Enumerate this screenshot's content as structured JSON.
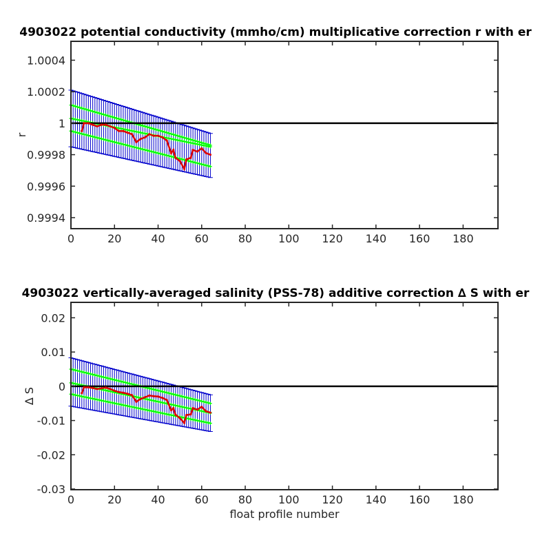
{
  "chart_data": [
    {
      "type": "line",
      "title": "4903022 potential conductivity (mmho/cm) multiplicative correction r with er",
      "xlabel": "",
      "ylabel": "r",
      "xlim": [
        0,
        196
      ],
      "ylim": [
        0.99933,
        1.00052
      ],
      "x_ticks": [
        0,
        20,
        40,
        60,
        80,
        100,
        120,
        140,
        160,
        180
      ],
      "x_tick_labels": [
        "0",
        "20",
        "40",
        "60",
        "80",
        "100",
        "120",
        "140",
        "160",
        "180"
      ],
      "y_ticks": [
        0.9994,
        0.9996,
        0.9998,
        1,
        1.0002,
        1.0004
      ],
      "y_tick_labels": [
        "0.9994",
        "0.9996",
        "0.9998",
        "1",
        "1.0002",
        "1.0004"
      ],
      "grid": false,
      "reference_line": 1,
      "fit": {
        "x_start": 0,
        "x_end": 64,
        "center": [
          1.00003,
          0.99985
        ],
        "upper": [
          1.000115,
          0.99986
        ],
        "lower": [
          0.99995,
          0.999725
        ]
      },
      "error_bars": {
        "x_start": 0,
        "x_end": 64,
        "upper": [
          1.00021,
          0.999935
        ],
        "lower": [
          0.99985,
          0.999655
        ]
      },
      "red_series": {
        "x": [
          5,
          6,
          8,
          10,
          12,
          14,
          16,
          18,
          20,
          22,
          24,
          26,
          28,
          30,
          32,
          34,
          36,
          38,
          40,
          42,
          44,
          46,
          47,
          48,
          50,
          52,
          53,
          55,
          56,
          58,
          60,
          62,
          64
        ],
        "y": [
          0.99995,
          1.0,
          1.0,
          0.99999,
          0.99998,
          0.99999,
          0.99999,
          0.99998,
          0.99997,
          0.99995,
          0.99995,
          0.99994,
          0.99993,
          0.99988,
          0.9999,
          0.99991,
          0.99993,
          0.99992,
          0.99992,
          0.99991,
          0.99989,
          0.99981,
          0.99983,
          0.99978,
          0.99976,
          0.99971,
          0.99977,
          0.99978,
          0.99983,
          0.99982,
          0.99984,
          0.99981,
          0.9998
        ]
      }
    },
    {
      "type": "line",
      "title": "4903022 vertically-averaged salinity (PSS-78) additive correction ∆ S with er",
      "xlabel": "float profile number",
      "ylabel": "∆ S",
      "xlim": [
        0,
        196
      ],
      "ylim": [
        -0.0302,
        0.0245
      ],
      "x_ticks": [
        0,
        20,
        40,
        60,
        80,
        100,
        120,
        140,
        160,
        180
      ],
      "x_tick_labels": [
        "0",
        "20",
        "40",
        "60",
        "80",
        "100",
        "120",
        "140",
        "160",
        "180"
      ],
      "y_ticks": [
        -0.03,
        -0.02,
        -0.01,
        0,
        0.01,
        0.02
      ],
      "y_tick_labels": [
        "-0.03",
        "-0.02",
        "-0.01",
        "0",
        "0.01",
        "0.02"
      ],
      "grid": false,
      "reference_line": 0,
      "fit": {
        "x_start": 0,
        "x_end": 64,
        "center": [
          0.001,
          -0.0078
        ],
        "upper": [
          0.005,
          -0.005
        ],
        "lower": [
          -0.0023,
          -0.0108
        ]
      },
      "error_bars": {
        "x_start": 0,
        "x_end": 64,
        "upper": [
          0.0083,
          -0.0025
        ],
        "lower": [
          -0.0058,
          -0.0132
        ]
      },
      "red_series": {
        "x": [
          5,
          6,
          8,
          10,
          12,
          14,
          16,
          18,
          20,
          22,
          24,
          26,
          28,
          30,
          32,
          34,
          36,
          38,
          40,
          42,
          44,
          46,
          47,
          48,
          50,
          52,
          53,
          55,
          56,
          58,
          60,
          62,
          64
        ],
        "y": [
          -0.002,
          -0.0003,
          -0.0003,
          -0.0005,
          -0.0008,
          -0.0006,
          -0.0004,
          -0.0008,
          -0.0013,
          -0.0017,
          -0.0019,
          -0.0022,
          -0.0026,
          -0.0045,
          -0.0037,
          -0.0032,
          -0.0027,
          -0.0029,
          -0.003,
          -0.0034,
          -0.004,
          -0.007,
          -0.0064,
          -0.0083,
          -0.0093,
          -0.0107,
          -0.0084,
          -0.0082,
          -0.0064,
          -0.0068,
          -0.006,
          -0.0073,
          -0.0077
        ]
      }
    }
  ]
}
